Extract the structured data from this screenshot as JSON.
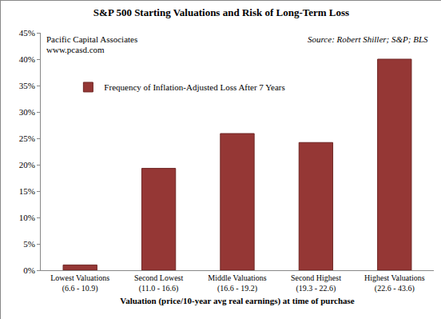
{
  "chart_data": {
    "type": "bar",
    "title": "S&P 500 Starting Valuations and Risk of Long-Term Loss",
    "annotations": [
      "Pacific Capital Associates",
      "www.pcasd.com",
      "Source: Robert Shiller; S&P; BLS"
    ],
    "xlabel": "Valuation (price/10-year avg real earnings) at time of purchase",
    "categories": [
      "Lowest Valuations\n(6.6 - 10.9)",
      "Second Lowest\n(11.0 - 16.6)",
      "Middle Valuations\n(16.6 - 19.2)",
      "Second Highest\n(19.3 - 22.6)",
      "Highest Valuations\n(22.6 - 43.6)"
    ],
    "series": [
      {
        "name": "Frequency of Inflation-Adjusted Loss After 7 Years",
        "color": "#953735",
        "values": [
          1.0,
          19.3,
          25.9,
          24.2,
          40.0
        ]
      }
    ],
    "ylim": [
      0,
      45
    ],
    "yticks": [
      {
        "value": 0,
        "label": "0%"
      },
      {
        "value": 5,
        "label": "5%"
      },
      {
        "value": 10,
        "label": "10%"
      },
      {
        "value": 15,
        "label": "15%"
      },
      {
        "value": 20,
        "label": "20%"
      },
      {
        "value": 25,
        "label": "25%"
      },
      {
        "value": 30,
        "label": "30%"
      },
      {
        "value": 35,
        "label": "35%"
      },
      {
        "value": 40,
        "label": "40%"
      },
      {
        "value": 45,
        "label": "45%"
      }
    ],
    "grid": false,
    "legend": "upper left"
  }
}
